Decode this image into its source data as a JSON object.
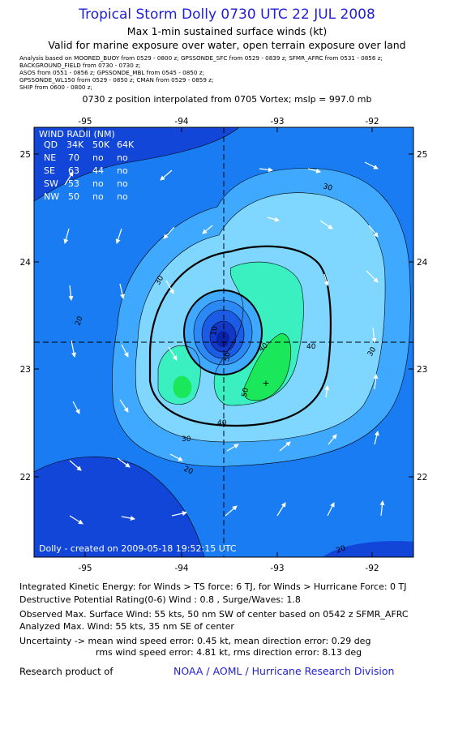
{
  "header": {
    "title": "Tropical Storm Dolly 0730 UTC 22 JUL 2008",
    "subtitle1": "Max 1-min sustained surface winds (kt)",
    "subtitle2": "Valid for marine exposure over water, open terrain exposure over land",
    "analysis_lines": [
      "Analysis based on  MOORED_BUOY from 0529 - 0800 z;  GPSSONDE_SFC from 0529 - 0839 z;  SFMR_AFRC from 0531 - 0856 z;",
      "BACKGROUND_FIELD from 0730 - 0730 z;",
      "ASOS from 0551 - 0856 z;  GPSSONDE_MBL from 0545 - 0850 z;",
      "GPSSONDE_WL150 from 0529 - 0850 z;  CMAN from 0529 - 0859 z;",
      "SHIP from 0600 - 0800 z;"
    ],
    "position_line": "0730 z position interpolated from 0705 Vortex; mslp = 997.0 mb"
  },
  "map": {
    "lon_ticks": [
      "-95",
      "-94",
      "-93",
      "-92"
    ],
    "lat_ticks": [
      "25",
      "24",
      "23",
      "22"
    ],
    "contour_labels": [
      "10",
      "20",
      "30",
      "40",
      "50"
    ],
    "colors": {
      "land": "#1246d8",
      "wind_10_20": "#1a7cf2",
      "wind_20_30": "#3fa9ff",
      "wind_30_40": "#7fd6ff",
      "wind_40_50": "#3af0c0",
      "wind_50_plus": "#1ae85a",
      "eye_ring_1": "#2c88f4",
      "eye_ring_2": "#1a5ce6",
      "eye_ring_3": "#1238c8"
    },
    "wind_radii": {
      "title": "WIND RADII (NM)",
      "header": [
        "QD",
        "34K",
        "50K",
        "64K"
      ],
      "rows": [
        [
          "NE",
          "70",
          "no",
          "no"
        ],
        [
          "SE",
          "63",
          "44",
          "no"
        ],
        [
          "SW",
          "53",
          "no",
          "no"
        ],
        [
          "NW",
          "50",
          "no",
          "no"
        ]
      ]
    },
    "credit": "Dolly - created on 2009-05-18 19:52:15 UTC"
  },
  "info": {
    "ike": "Integrated Kinetic Energy:  for Winds > TS force: 6 TJ,  for Winds > Hurricane Force: 0 TJ",
    "dpr": "Destructive Potential Rating(0-6)   Wind : 0.8 , Surge/Waves: 1.8",
    "obs_max": "Observed Max. Surface Wind: 55 kts, 50 nm SW of center based on 0542 z SFMR_AFRC",
    "ana_max": "Analyzed Max. Wind: 55 kts, 35 nm SE of center",
    "uncert1": "Uncertainty -> mean wind speed error: 0.45 kt,   mean direction error: 0.29 deg",
    "uncert2": "rms wind speed error: 4.81 kt,   rms direction error: 8.13 deg",
    "research_label": "Research product of",
    "research_org": "NOAA / AOML / Hurricane Research Division"
  }
}
